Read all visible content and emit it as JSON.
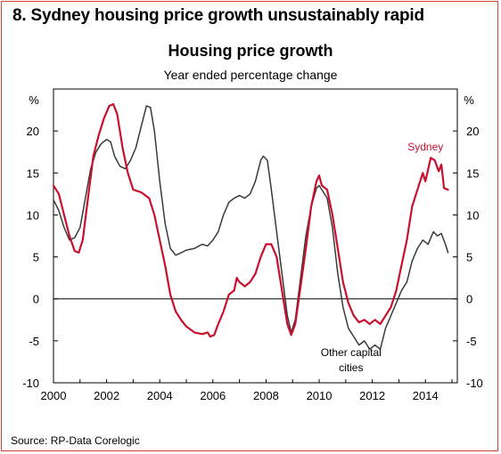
{
  "heading": "8. Sydney housing price growth unsustainably rapid",
  "source": "Source: RP-Data Corelogic",
  "chart_data": {
    "type": "line",
    "title": "Housing price growth",
    "subtitle": "Year ended percentage change",
    "ylabel_left": "%",
    "ylabel_right": "%",
    "xlim": [
      2000,
      2015.2
    ],
    "ylim": [
      -10,
      25
    ],
    "x_ticks": [
      2000,
      2002,
      2004,
      2006,
      2008,
      2010,
      2012,
      2014
    ],
    "x_tick_labels": [
      "2000",
      "2002",
      "2004",
      "2006",
      "2008",
      "2010",
      "2012",
      "2014"
    ],
    "y_ticks": [
      -10,
      -5,
      0,
      5,
      10,
      15,
      20
    ],
    "y_tick_labels": [
      "-10",
      "-5",
      "0",
      "5",
      "10",
      "15",
      "20"
    ],
    "grid": false,
    "zero_line": true,
    "series": [
      {
        "name": "Sydney",
        "color": "#c8102e",
        "points": [
          [
            2000.0,
            13.5
          ],
          [
            2000.2,
            12.5
          ],
          [
            2000.4,
            10.0
          ],
          [
            2000.6,
            7.5
          ],
          [
            2000.8,
            5.7
          ],
          [
            2000.95,
            5.5
          ],
          [
            2001.1,
            7.0
          ],
          [
            2001.3,
            12.0
          ],
          [
            2001.5,
            17.0
          ],
          [
            2001.7,
            19.5
          ],
          [
            2001.9,
            21.5
          ],
          [
            2002.1,
            23.0
          ],
          [
            2002.25,
            23.2
          ],
          [
            2002.4,
            22.0
          ],
          [
            2002.6,
            18.0
          ],
          [
            2002.8,
            15.0
          ],
          [
            2003.0,
            13.0
          ],
          [
            2003.3,
            12.7
          ],
          [
            2003.6,
            12.0
          ],
          [
            2003.8,
            10.0
          ],
          [
            2004.0,
            7.0
          ],
          [
            2004.2,
            4.0
          ],
          [
            2004.4,
            0.5
          ],
          [
            2004.6,
            -1.5
          ],
          [
            2004.8,
            -2.5
          ],
          [
            2005.0,
            -3.3
          ],
          [
            2005.3,
            -4.0
          ],
          [
            2005.6,
            -4.2
          ],
          [
            2005.8,
            -4.0
          ],
          [
            2005.9,
            -4.5
          ],
          [
            2006.05,
            -4.3
          ],
          [
            2006.2,
            -3.0
          ],
          [
            2006.4,
            -1.5
          ],
          [
            2006.6,
            0.5
          ],
          [
            2006.8,
            1.0
          ],
          [
            2006.9,
            2.5
          ],
          [
            2007.0,
            2.0
          ],
          [
            2007.2,
            1.5
          ],
          [
            2007.4,
            2.0
          ],
          [
            2007.6,
            3.0
          ],
          [
            2007.8,
            5.0
          ],
          [
            2008.0,
            6.5
          ],
          [
            2008.2,
            6.5
          ],
          [
            2008.4,
            5.0
          ],
          [
            2008.6,
            1.0
          ],
          [
            2008.8,
            -3.0
          ],
          [
            2008.95,
            -4.3
          ],
          [
            2009.1,
            -3.0
          ],
          [
            2009.3,
            1.5
          ],
          [
            2009.5,
            6.0
          ],
          [
            2009.7,
            11.0
          ],
          [
            2009.9,
            14.0
          ],
          [
            2010.0,
            14.7
          ],
          [
            2010.1,
            13.5
          ],
          [
            2010.3,
            13.0
          ],
          [
            2010.5,
            10.0
          ],
          [
            2010.7,
            6.0
          ],
          [
            2010.9,
            2.0
          ],
          [
            2011.1,
            -0.5
          ],
          [
            2011.3,
            -2.0
          ],
          [
            2011.5,
            -2.8
          ],
          [
            2011.7,
            -2.5
          ],
          [
            2011.9,
            -3.0
          ],
          [
            2012.1,
            -2.5
          ],
          [
            2012.3,
            -3.0
          ],
          [
            2012.5,
            -2.0
          ],
          [
            2012.7,
            -1.0
          ],
          [
            2012.9,
            1.0
          ],
          [
            2013.1,
            4.0
          ],
          [
            2013.3,
            7.0
          ],
          [
            2013.5,
            11.0
          ],
          [
            2013.7,
            13.0
          ],
          [
            2013.9,
            15.0
          ],
          [
            2014.0,
            14.0
          ],
          [
            2014.2,
            16.8
          ],
          [
            2014.35,
            16.5
          ],
          [
            2014.5,
            15.2
          ],
          [
            2014.6,
            16.0
          ],
          [
            2014.7,
            13.2
          ],
          [
            2014.85,
            13.0
          ]
        ]
      },
      {
        "name": "Other capital cities",
        "color": "#3a3a3a",
        "points": [
          [
            2000.0,
            11.8
          ],
          [
            2000.2,
            10.5
          ],
          [
            2000.4,
            8.5
          ],
          [
            2000.6,
            7.0
          ],
          [
            2000.8,
            7.3
          ],
          [
            2001.0,
            8.5
          ],
          [
            2001.2,
            12.0
          ],
          [
            2001.4,
            15.5
          ],
          [
            2001.6,
            17.5
          ],
          [
            2001.8,
            18.5
          ],
          [
            2002.0,
            19.0
          ],
          [
            2002.15,
            18.7
          ],
          [
            2002.3,
            17.0
          ],
          [
            2002.5,
            15.8
          ],
          [
            2002.7,
            15.5
          ],
          [
            2002.9,
            16.5
          ],
          [
            2003.1,
            18.0
          ],
          [
            2003.3,
            20.5
          ],
          [
            2003.5,
            23.0
          ],
          [
            2003.65,
            22.8
          ],
          [
            2003.8,
            20.0
          ],
          [
            2004.0,
            14.0
          ],
          [
            2004.2,
            9.0
          ],
          [
            2004.4,
            6.0
          ],
          [
            2004.6,
            5.2
          ],
          [
            2004.8,
            5.5
          ],
          [
            2005.0,
            5.8
          ],
          [
            2005.3,
            6.0
          ],
          [
            2005.6,
            6.5
          ],
          [
            2005.8,
            6.3
          ],
          [
            2006.0,
            7.0
          ],
          [
            2006.2,
            8.0
          ],
          [
            2006.4,
            10.0
          ],
          [
            2006.6,
            11.5
          ],
          [
            2006.8,
            12.0
          ],
          [
            2007.0,
            12.3
          ],
          [
            2007.2,
            12.0
          ],
          [
            2007.4,
            12.5
          ],
          [
            2007.6,
            14.0
          ],
          [
            2007.8,
            16.5
          ],
          [
            2007.9,
            17.0
          ],
          [
            2008.05,
            16.5
          ],
          [
            2008.2,
            13.0
          ],
          [
            2008.4,
            8.0
          ],
          [
            2008.6,
            3.0
          ],
          [
            2008.8,
            -2.0
          ],
          [
            2008.95,
            -4.0
          ],
          [
            2009.1,
            -2.5
          ],
          [
            2009.3,
            2.5
          ],
          [
            2009.5,
            7.5
          ],
          [
            2009.7,
            11.0
          ],
          [
            2009.9,
            13.2
          ],
          [
            2010.0,
            13.5
          ],
          [
            2010.1,
            13.0
          ],
          [
            2010.3,
            12.0
          ],
          [
            2010.5,
            8.5
          ],
          [
            2010.7,
            3.0
          ],
          [
            2010.9,
            -1.0
          ],
          [
            2011.1,
            -3.5
          ],
          [
            2011.3,
            -4.5
          ],
          [
            2011.5,
            -5.5
          ],
          [
            2011.7,
            -5.0
          ],
          [
            2011.9,
            -6.0
          ],
          [
            2012.1,
            -5.5
          ],
          [
            2012.3,
            -6.0
          ],
          [
            2012.5,
            -3.5
          ],
          [
            2012.7,
            -2.0
          ],
          [
            2012.9,
            -0.5
          ],
          [
            2013.1,
            1.0
          ],
          [
            2013.3,
            2.0
          ],
          [
            2013.5,
            4.5
          ],
          [
            2013.7,
            6.0
          ],
          [
            2013.9,
            7.0
          ],
          [
            2014.1,
            6.5
          ],
          [
            2014.3,
            8.0
          ],
          [
            2014.45,
            7.5
          ],
          [
            2014.6,
            7.8
          ],
          [
            2014.75,
            6.5
          ],
          [
            2014.85,
            5.5
          ]
        ]
      }
    ],
    "annotations": [
      {
        "text": "Sydney",
        "series": 0,
        "color": "#c8102e"
      },
      {
        "text": "Other capital",
        "series": 1,
        "color": "#000000"
      },
      {
        "text": "cities",
        "series": 1,
        "color": "#000000"
      }
    ]
  }
}
